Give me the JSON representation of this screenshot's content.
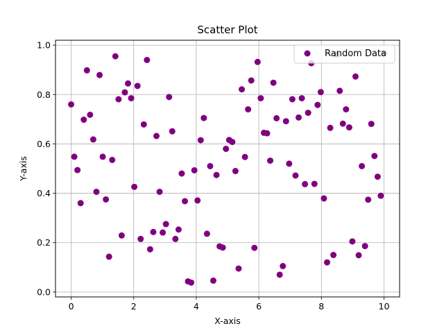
{
  "chart_data": {
    "type": "scatter",
    "title": "Scatter Plot",
    "xlabel": "X-axis",
    "ylabel": "Y-axis",
    "xlim": [
      -0.5,
      10.5
    ],
    "ylim": [
      -0.02,
      1.02
    ],
    "xticks": [
      0,
      2,
      4,
      6,
      8,
      10
    ],
    "yticks": [
      0.0,
      0.2,
      0.4,
      0.6,
      0.8,
      1.0
    ],
    "xtick_labels": [
      "0",
      "2",
      "4",
      "6",
      "8",
      "10"
    ],
    "ytick_labels": [
      "0.0",
      "0.2",
      "0.4",
      "0.6",
      "0.8",
      "1.0"
    ],
    "grid": true,
    "legend_position": "top-right",
    "series": [
      {
        "name": "Random Data",
        "color": "#800080",
        "marker": "circle",
        "x": [
          0.0,
          0.101,
          0.202,
          0.303,
          0.404,
          0.505,
          0.606,
          0.707,
          0.808,
          0.909,
          1.01,
          1.111,
          1.212,
          1.313,
          1.414,
          1.515,
          1.616,
          1.717,
          1.818,
          1.919,
          2.02,
          2.121,
          2.222,
          2.323,
          2.424,
          2.525,
          2.626,
          2.727,
          2.828,
          2.929,
          3.03,
          3.131,
          3.232,
          3.333,
          3.434,
          3.535,
          3.636,
          3.737,
          3.838,
          3.939,
          4.04,
          4.141,
          4.242,
          4.343,
          4.444,
          4.545,
          4.646,
          4.747,
          4.848,
          4.949,
          5.051,
          5.152,
          5.253,
          5.354,
          5.455,
          5.556,
          5.657,
          5.758,
          5.859,
          5.96,
          6.061,
          6.162,
          6.263,
          6.364,
          6.465,
          6.566,
          6.667,
          6.768,
          6.869,
          6.97,
          7.071,
          7.172,
          7.273,
          7.374,
          7.475,
          7.576,
          7.677,
          7.778,
          7.879,
          7.98,
          8.081,
          8.182,
          8.283,
          8.384,
          8.485,
          8.586,
          8.687,
          8.788,
          8.889,
          8.99,
          9.091,
          9.192,
          9.293,
          9.394,
          9.495,
          9.596,
          9.697,
          9.798,
          9.899,
          10.0
        ],
        "y": [
          0.76,
          0.548,
          0.494,
          0.36,
          0.698,
          0.898,
          0.718,
          0.618,
          0.406,
          0.879,
          0.548,
          0.375,
          0.143,
          0.535,
          0.955,
          0.781,
          0.229,
          0.809,
          0.845,
          0.785,
          0.426,
          0.835,
          0.215,
          0.679,
          0.94,
          0.173,
          0.243,
          0.632,
          0.406,
          0.241,
          0.275,
          0.79,
          0.651,
          0.215,
          0.253,
          0.48,
          0.368,
          0.043,
          0.038,
          0.493,
          0.371,
          0.615,
          0.705,
          0.236,
          0.51,
          0.046,
          0.474,
          0.185,
          0.18,
          0.58,
          0.616,
          0.608,
          0.49,
          0.095,
          0.821,
          0.547,
          0.74,
          0.857,
          0.179,
          0.932,
          0.785,
          0.645,
          0.643,
          0.532,
          0.848,
          0.704,
          0.07,
          0.105,
          0.692,
          0.52,
          0.781,
          0.472,
          0.707,
          0.785,
          0.437,
          0.726,
          0.927,
          0.438,
          0.758,
          0.81,
          0.379,
          0.12,
          0.665,
          0.15,
          0.962,
          0.815,
          0.682,
          0.74,
          0.667,
          0.205,
          0.873,
          0.149,
          0.51,
          0.186,
          0.374,
          0.681,
          0.551,
          0.467,
          0.39,
          0.968
        ]
      }
    ]
  }
}
